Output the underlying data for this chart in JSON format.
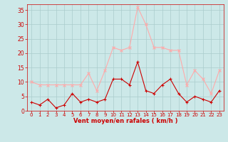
{
  "x": [
    0,
    1,
    2,
    3,
    4,
    5,
    6,
    7,
    8,
    9,
    10,
    11,
    12,
    13,
    14,
    15,
    16,
    17,
    18,
    19,
    20,
    21,
    22,
    23
  ],
  "wind_mean": [
    3,
    2,
    4,
    1,
    2,
    6,
    3,
    4,
    3,
    4,
    11,
    11,
    9,
    17,
    7,
    6,
    9,
    11,
    6,
    3,
    5,
    4,
    3,
    7
  ],
  "wind_gust": [
    10,
    9,
    9,
    9,
    9,
    9,
    9,
    13,
    7,
    14,
    22,
    21,
    22,
    36,
    30,
    22,
    22,
    21,
    21,
    9,
    14,
    11,
    6,
    14
  ],
  "bg_color": "#cce8e8",
  "grid_color": "#aacccc",
  "mean_color": "#cc0000",
  "gust_color": "#ffaaaa",
  "xlabel": "Vent moyen/en rafales ( km/h )",
  "xlabel_color": "#cc0000",
  "tick_color": "#cc0000",
  "spine_color": "#cc0000",
  "ylim": [
    0,
    37
  ],
  "yticks": [
    0,
    5,
    10,
    15,
    20,
    25,
    30,
    35
  ],
  "xlim": [
    -0.5,
    23.5
  ]
}
